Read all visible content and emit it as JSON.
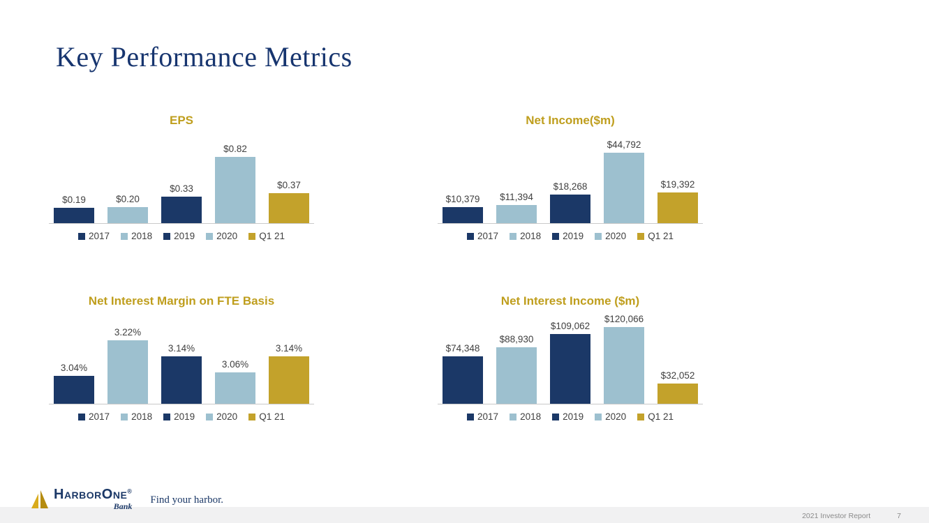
{
  "slide": {
    "title": "Key Performance Metrics"
  },
  "footer": {
    "brand": "HarborOne",
    "brand_mark": "®",
    "brand_sub": "Bank",
    "tagline": "Find your harbor.",
    "report_label": "2021 Investor Report",
    "page_number": "7"
  },
  "colors": {
    "series": [
      "#1b3867",
      "#9dc0cf",
      "#1b3867",
      "#9dc0cf",
      "#c3a22b"
    ],
    "chart_title": "#bf9e1d",
    "slide_title": "#17356f",
    "logo_gold": "#cfa21d"
  },
  "chart_data": [
    {
      "type": "bar",
      "title": "EPS",
      "categories": [
        "2017",
        "2018",
        "2019",
        "2020",
        "Q1 21"
      ],
      "values": [
        0.19,
        0.2,
        0.33,
        0.82,
        0.37
      ],
      "labels": [
        "$0.19",
        "$0.20",
        "$0.33",
        "$0.82",
        "$0.37"
      ],
      "ylim": [
        0,
        1.1
      ],
      "legend_position": "bottom",
      "grid": false
    },
    {
      "type": "bar",
      "title": "Net Income($m)",
      "categories": [
        "2017",
        "2018",
        "2019",
        "2020",
        "Q1 21"
      ],
      "values": [
        10379,
        11394,
        18268,
        44792,
        19392
      ],
      "labels": [
        "$10,379",
        "$11,394",
        "$18,268",
        "$44,792",
        "$19,392"
      ],
      "ylim": [
        0,
        57000
      ],
      "legend_position": "bottom",
      "grid": false
    },
    {
      "type": "bar",
      "title": "Net Interest Margin on FTE Basis",
      "categories": [
        "2017",
        "2018",
        "2019",
        "2020",
        "Q1 21"
      ],
      "values": [
        3.04,
        3.22,
        3.14,
        3.06,
        3.14
      ],
      "labels": [
        "3.04%",
        "3.22%",
        "3.14%",
        "3.06%",
        "3.14%"
      ],
      "ylim": [
        2.9,
        3.35
      ],
      "legend_position": "bottom",
      "grid": false
    },
    {
      "type": "bar",
      "title": "Net Interest Income ($m)",
      "categories": [
        "2017",
        "2018",
        "2019",
        "2020",
        "Q1 21"
      ],
      "values": [
        74348,
        88930,
        109062,
        120066,
        32052
      ],
      "labels": [
        "$74,348",
        "$88,930",
        "$109,062",
        "$120,066",
        "$32,052"
      ],
      "ylim": [
        0,
        140000
      ],
      "legend_position": "bottom",
      "grid": false
    }
  ]
}
